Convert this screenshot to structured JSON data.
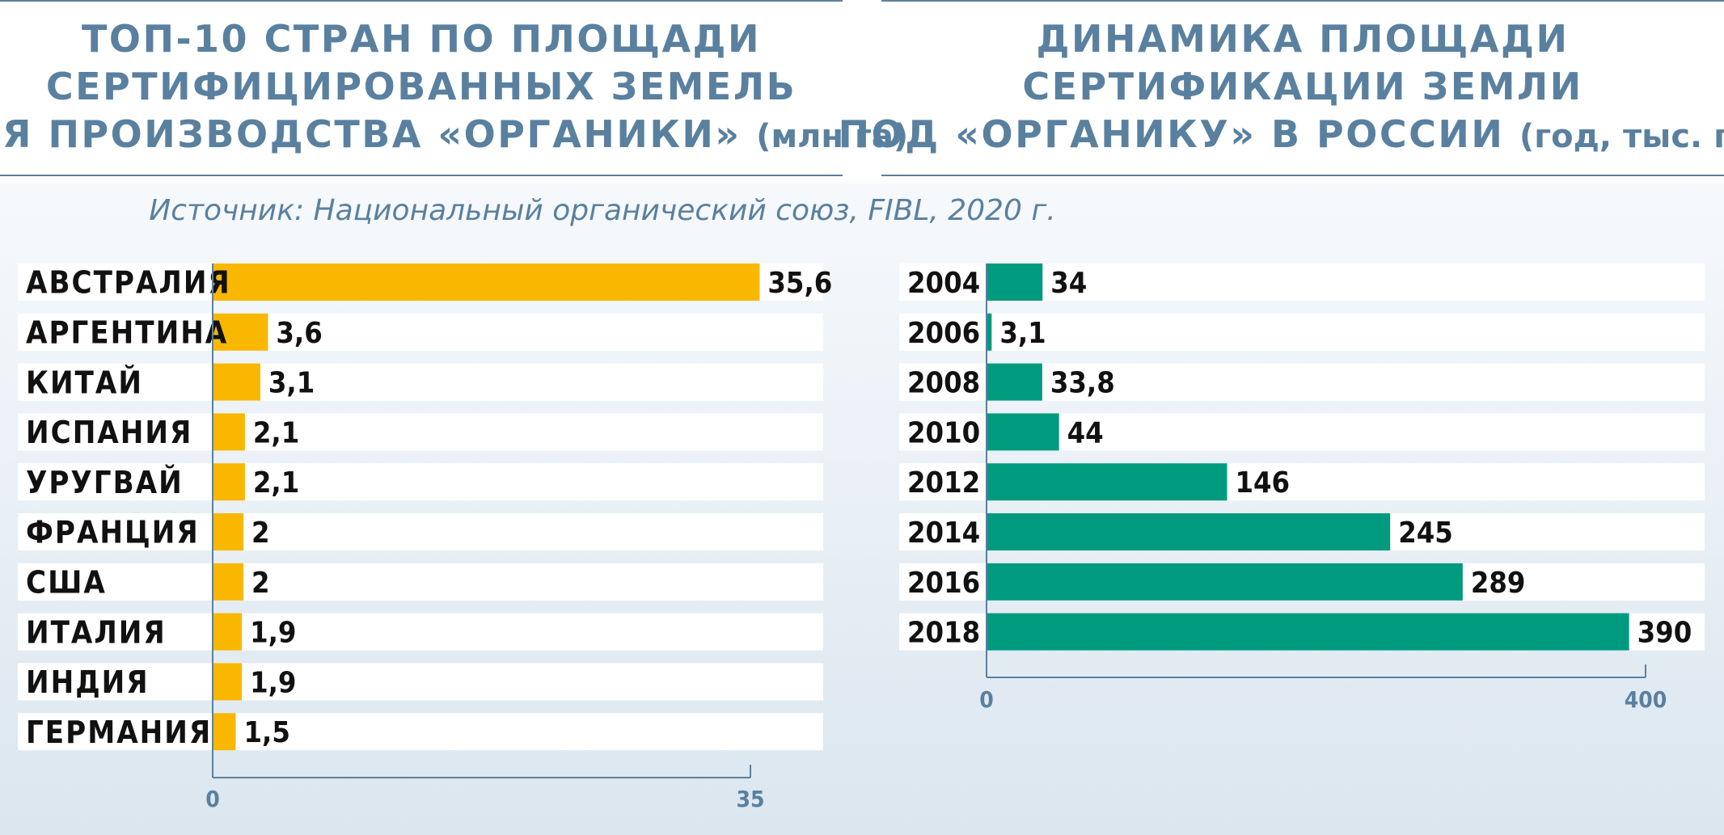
{
  "titles": {
    "left": {
      "lines": [
        "ТОП-10 СТРАН ПО ПЛОЩАДИ",
        "СЕРТИФИЦИРОВАННЫХ ЗЕМЕЛЬ",
        "ДЛЯ ПРОИЗВОДСТВА «ОРГАНИКИ»"
      ],
      "unit": "(млн га)"
    },
    "right": {
      "lines": [
        "ДИНАМИКА ПЛОЩАДИ",
        "СЕРТИФИКАЦИИ ЗЕМЛИ",
        "ПОД «ОРГАНИКУ» В РОССИИ"
      ],
      "unit": "(год, тыс. га)"
    }
  },
  "source": "Источник: Национальный органический союз, FIBL, 2020 г.",
  "colors": {
    "title": "#5a809f",
    "bar_left": "#f9b700",
    "bar_right": "#009b7e",
    "axis": "#5a809f"
  },
  "chart_data": [
    {
      "type": "bar",
      "orientation": "horizontal",
      "categories": [
        "АВСТРАЛИЯ",
        "АРГЕНТИНА",
        "КИТАЙ",
        "ИСПАНИЯ",
        "УРУГВАЙ",
        "ФРАНЦИЯ",
        "США",
        "ИТАЛИЯ",
        "ИНДИЯ",
        "ГЕРМАНИЯ"
      ],
      "values": [
        35.6,
        3.6,
        3.1,
        2.1,
        2.1,
        2,
        2,
        1.9,
        1.9,
        1.5
      ],
      "value_labels": [
        "35,6",
        "3,6",
        "3,1",
        "2,1",
        "2,1",
        "2",
        "2",
        "1,9",
        "1,9",
        "1,5"
      ],
      "ticks": [
        0,
        35
      ],
      "tick_labels": [
        "0",
        "35"
      ],
      "xlim": [
        0,
        35
      ]
    },
    {
      "type": "bar",
      "orientation": "horizontal",
      "categories": [
        "2004",
        "2006",
        "2008",
        "2010",
        "2012",
        "2014",
        "2016",
        "2018"
      ],
      "values": [
        34,
        3.1,
        33.8,
        44,
        146,
        245,
        289,
        390
      ],
      "value_labels": [
        "34",
        "3,1",
        "33,8",
        "44",
        "146",
        "245",
        "289",
        "390"
      ],
      "ticks": [
        0,
        400
      ],
      "tick_labels": [
        "0",
        "400"
      ],
      "xlim": [
        0,
        400
      ]
    }
  ]
}
